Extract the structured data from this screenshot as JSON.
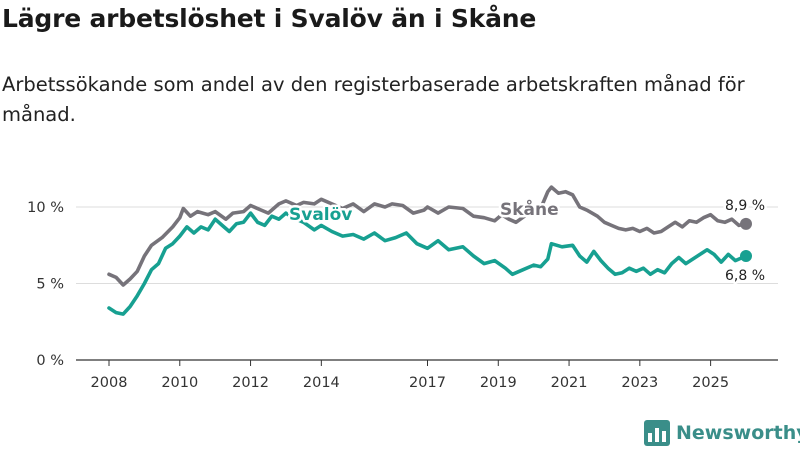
{
  "title": "Lägre arbetslöshet i Svalöv än i Skåne",
  "subtitle": "Arbetssökande som andel av den registerbaserade arbetskraften månad för månad.",
  "brand": {
    "name": "Newsworthy"
  },
  "chart_data": {
    "type": "line",
    "xlim": [
      2008,
      2026.4
    ],
    "ylim": [
      0,
      10
    ],
    "x_ticks": [
      2008,
      2010,
      2012,
      2014,
      2017,
      2019,
      2021,
      2023,
      2025
    ],
    "y_ticks": [
      0,
      5,
      10
    ],
    "y_tick_labels": [
      "0 %",
      "5 %",
      "10 %"
    ],
    "colors": {
      "skane": "#76737a",
      "svalov": "#17a091",
      "axis": "#333333",
      "grid": "#dddddd"
    },
    "series": [
      {
        "name": "Skåne",
        "label": "Skåne",
        "end_label": "8,9 %",
        "color": "#76737a",
        "points": [
          [
            2008.0,
            5.6
          ],
          [
            2008.2,
            5.4
          ],
          [
            2008.4,
            4.9
          ],
          [
            2008.6,
            5.3
          ],
          [
            2008.8,
            5.8
          ],
          [
            2009.0,
            6.8
          ],
          [
            2009.2,
            7.5
          ],
          [
            2009.5,
            8.0
          ],
          [
            2009.8,
            8.7
          ],
          [
            2010.0,
            9.3
          ],
          [
            2010.1,
            9.9
          ],
          [
            2010.3,
            9.4
          ],
          [
            2010.5,
            9.7
          ],
          [
            2010.8,
            9.5
          ],
          [
            2011.0,
            9.7
          ],
          [
            2011.3,
            9.2
          ],
          [
            2011.5,
            9.6
          ],
          [
            2011.8,
            9.7
          ],
          [
            2012.0,
            10.1
          ],
          [
            2012.3,
            9.8
          ],
          [
            2012.5,
            9.6
          ],
          [
            2012.8,
            10.2
          ],
          [
            2013.0,
            10.4
          ],
          [
            2013.3,
            10.1
          ],
          [
            2013.5,
            10.3
          ],
          [
            2013.8,
            10.2
          ],
          [
            2014.0,
            10.5
          ],
          [
            2014.3,
            10.2
          ],
          [
            2014.6,
            9.9
          ],
          [
            2014.9,
            10.2
          ],
          [
            2015.2,
            9.7
          ],
          [
            2015.5,
            10.2
          ],
          [
            2015.8,
            10.0
          ],
          [
            2016.0,
            10.2
          ],
          [
            2016.3,
            10.1
          ],
          [
            2016.6,
            9.6
          ],
          [
            2016.9,
            9.8
          ],
          [
            2017.0,
            10.0
          ],
          [
            2017.3,
            9.6
          ],
          [
            2017.6,
            10.0
          ],
          [
            2018.0,
            9.9
          ],
          [
            2018.3,
            9.4
          ],
          [
            2018.6,
            9.3
          ],
          [
            2018.9,
            9.1
          ],
          [
            2019.1,
            9.5
          ],
          [
            2019.3,
            9.2
          ],
          [
            2019.5,
            9.0
          ],
          [
            2019.8,
            9.5
          ],
          [
            2020.0,
            9.7
          ],
          [
            2020.2,
            9.9
          ],
          [
            2020.4,
            11.0
          ],
          [
            2020.5,
            11.3
          ],
          [
            2020.7,
            10.9
          ],
          [
            2020.9,
            11.0
          ],
          [
            2021.1,
            10.8
          ],
          [
            2021.3,
            10.0
          ],
          [
            2021.5,
            9.8
          ],
          [
            2021.8,
            9.4
          ],
          [
            2022.0,
            9.0
          ],
          [
            2022.2,
            8.8
          ],
          [
            2022.4,
            8.6
          ],
          [
            2022.6,
            8.5
          ],
          [
            2022.8,
            8.6
          ],
          [
            2023.0,
            8.4
          ],
          [
            2023.2,
            8.6
          ],
          [
            2023.4,
            8.3
          ],
          [
            2023.6,
            8.4
          ],
          [
            2023.8,
            8.7
          ],
          [
            2024.0,
            9.0
          ],
          [
            2024.2,
            8.7
          ],
          [
            2024.4,
            9.1
          ],
          [
            2024.6,
            9.0
          ],
          [
            2024.8,
            9.3
          ],
          [
            2025.0,
            9.5
          ],
          [
            2025.2,
            9.1
          ],
          [
            2025.4,
            9.0
          ],
          [
            2025.6,
            9.2
          ],
          [
            2025.8,
            8.8
          ],
          [
            2026.0,
            8.9
          ]
        ]
      },
      {
        "name": "Svalöv",
        "label": "Svalöv",
        "end_label": "6,8 %",
        "color": "#17a091",
        "points": [
          [
            2008.0,
            3.4
          ],
          [
            2008.2,
            3.1
          ],
          [
            2008.4,
            3.0
          ],
          [
            2008.6,
            3.5
          ],
          [
            2008.8,
            4.2
          ],
          [
            2009.0,
            5.0
          ],
          [
            2009.2,
            5.9
          ],
          [
            2009.4,
            6.3
          ],
          [
            2009.6,
            7.3
          ],
          [
            2009.8,
            7.6
          ],
          [
            2010.0,
            8.1
          ],
          [
            2010.2,
            8.7
          ],
          [
            2010.4,
            8.3
          ],
          [
            2010.6,
            8.7
          ],
          [
            2010.8,
            8.5
          ],
          [
            2011.0,
            9.2
          ],
          [
            2011.2,
            8.8
          ],
          [
            2011.4,
            8.4
          ],
          [
            2011.6,
            8.9
          ],
          [
            2011.8,
            9.0
          ],
          [
            2012.0,
            9.6
          ],
          [
            2012.2,
            9.0
          ],
          [
            2012.4,
            8.8
          ],
          [
            2012.6,
            9.4
          ],
          [
            2012.8,
            9.2
          ],
          [
            2013.0,
            9.6
          ],
          [
            2013.2,
            9.3
          ],
          [
            2013.5,
            9.0
          ],
          [
            2013.8,
            8.5
          ],
          [
            2014.0,
            8.8
          ],
          [
            2014.3,
            8.4
          ],
          [
            2014.6,
            8.1
          ],
          [
            2014.9,
            8.2
          ],
          [
            2015.2,
            7.9
          ],
          [
            2015.5,
            8.3
          ],
          [
            2015.8,
            7.8
          ],
          [
            2016.1,
            8.0
          ],
          [
            2016.4,
            8.3
          ],
          [
            2016.7,
            7.6
          ],
          [
            2017.0,
            7.3
          ],
          [
            2017.3,
            7.8
          ],
          [
            2017.6,
            7.2
          ],
          [
            2018.0,
            7.4
          ],
          [
            2018.3,
            6.8
          ],
          [
            2018.6,
            6.3
          ],
          [
            2018.9,
            6.5
          ],
          [
            2019.2,
            6.0
          ],
          [
            2019.4,
            5.6
          ],
          [
            2019.7,
            5.9
          ],
          [
            2020.0,
            6.2
          ],
          [
            2020.2,
            6.1
          ],
          [
            2020.4,
            6.6
          ],
          [
            2020.5,
            7.6
          ],
          [
            2020.8,
            7.4
          ],
          [
            2021.1,
            7.5
          ],
          [
            2021.3,
            6.8
          ],
          [
            2021.5,
            6.4
          ],
          [
            2021.7,
            7.1
          ],
          [
            2021.9,
            6.5
          ],
          [
            2022.1,
            6.0
          ],
          [
            2022.3,
            5.6
          ],
          [
            2022.5,
            5.7
          ],
          [
            2022.7,
            6.0
          ],
          [
            2022.9,
            5.8
          ],
          [
            2023.1,
            6.0
          ],
          [
            2023.3,
            5.6
          ],
          [
            2023.5,
            5.9
          ],
          [
            2023.7,
            5.7
          ],
          [
            2023.9,
            6.3
          ],
          [
            2024.1,
            6.7
          ],
          [
            2024.3,
            6.3
          ],
          [
            2024.5,
            6.6
          ],
          [
            2024.7,
            6.9
          ],
          [
            2024.9,
            7.2
          ],
          [
            2025.1,
            6.9
          ],
          [
            2025.3,
            6.4
          ],
          [
            2025.5,
            6.9
          ],
          [
            2025.7,
            6.5
          ],
          [
            2025.9,
            6.7
          ],
          [
            2026.0,
            6.8
          ]
        ]
      }
    ]
  }
}
